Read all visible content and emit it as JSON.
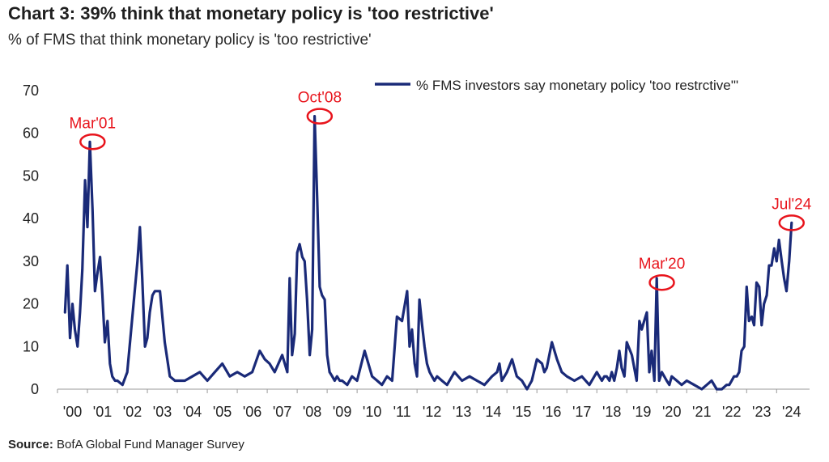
{
  "header": {
    "title": "Chart 3: 39% think that monetary policy is 'too restrictive'",
    "subtitle": "% of FMS that think monetary policy is 'too restrictive'"
  },
  "footer": {
    "source_label": "Source:",
    "source_text": "BofA Global Fund Manager Survey"
  },
  "colors": {
    "series": "#1a2a78",
    "annotation": "#e8141c"
  },
  "chart_data": {
    "type": "line",
    "title": "Chart 3: 39% think that monetary policy is 'too restrictive'",
    "subtitle": "% of FMS that think monetary policy is 'too restrictive'",
    "xlabel": "",
    "ylabel": "",
    "xlim": [
      2000,
      2025.1
    ],
    "ylim": [
      0,
      70
    ],
    "yticks": [
      0,
      10,
      20,
      30,
      40,
      50,
      60,
      70
    ],
    "xtick_labels": [
      "'00",
      "'01",
      "'02",
      "'03",
      "'04",
      "'05",
      "'06",
      "'07",
      "'08",
      "'09",
      "'10",
      "'11",
      "'12",
      "'13",
      "'14",
      "'15",
      "'16",
      "'17",
      "'18",
      "'19",
      "'20",
      "'21",
      "'22",
      "'23",
      "'24"
    ],
    "grid": false,
    "legend": {
      "position": "top-right",
      "entries": [
        "% FMS investors say monetary policy 'too restrctive'\""
      ]
    },
    "series": [
      {
        "name": "% FMS investors say monetary policy 'too restrctive'\"",
        "x": [
          2000.25,
          2000.33,
          2000.42,
          2000.5,
          2000.58,
          2000.67,
          2000.75,
          2000.83,
          2000.92,
          2001.0,
          2001.08,
          2001.17,
          2001.25,
          2001.33,
          2001.42,
          2001.5,
          2001.58,
          2001.67,
          2001.75,
          2001.83,
          2001.92,
          2002.0,
          2002.17,
          2002.33,
          2002.5,
          2002.67,
          2002.75,
          2002.83,
          2002.92,
          2003.0,
          2003.08,
          2003.17,
          2003.25,
          2003.42,
          2003.58,
          2003.75,
          2003.92,
          2004.08,
          2004.25,
          2004.5,
          2004.75,
          2005.0,
          2005.25,
          2005.5,
          2005.75,
          2006.0,
          2006.25,
          2006.5,
          2006.75,
          2006.92,
          2007.08,
          2007.25,
          2007.5,
          2007.67,
          2007.75,
          2007.83,
          2007.92,
          2008.0,
          2008.08,
          2008.17,
          2008.25,
          2008.33,
          2008.42,
          2008.5,
          2008.58,
          2008.67,
          2008.75,
          2008.83,
          2008.92,
          2009.0,
          2009.08,
          2009.17,
          2009.25,
          2009.33,
          2009.42,
          2009.5,
          2009.67,
          2009.83,
          2010.0,
          2010.25,
          2010.5,
          2010.67,
          2010.83,
          2011.0,
          2011.17,
          2011.33,
          2011.5,
          2011.67,
          2011.75,
          2011.83,
          2011.92,
          2012.0,
          2012.08,
          2012.17,
          2012.25,
          2012.33,
          2012.42,
          2012.5,
          2012.58,
          2012.67,
          2012.83,
          2013.0,
          2013.25,
          2013.5,
          2013.75,
          2014.0,
          2014.25,
          2014.5,
          2014.67,
          2014.75,
          2014.83,
          2015.0,
          2015.17,
          2015.33,
          2015.5,
          2015.67,
          2015.83,
          2016.0,
          2016.17,
          2016.25,
          2016.33,
          2016.5,
          2016.67,
          2016.83,
          2017.0,
          2017.25,
          2017.5,
          2017.75,
          2018.0,
          2018.17,
          2018.25,
          2018.33,
          2018.42,
          2018.5,
          2018.58,
          2018.67,
          2018.75,
          2018.83,
          2018.92,
          2019.0,
          2019.17,
          2019.33,
          2019.42,
          2019.5,
          2019.58,
          2019.67,
          2019.75,
          2019.83,
          2019.92,
          2020.0,
          2020.08,
          2020.17,
          2020.25,
          2020.33,
          2020.42,
          2020.5,
          2020.67,
          2020.83,
          2021.0,
          2021.25,
          2021.5,
          2021.67,
          2021.83,
          2022.0,
          2022.17,
          2022.33,
          2022.42,
          2022.5,
          2022.58,
          2022.67,
          2022.75,
          2022.83,
          2022.92,
          2023.0,
          2023.08,
          2023.17,
          2023.25,
          2023.33,
          2023.42,
          2023.5,
          2023.58,
          2023.67,
          2023.75,
          2023.83,
          2023.92,
          2024.0,
          2024.08,
          2024.17,
          2024.25,
          2024.33,
          2024.42,
          2024.5
        ],
        "values": [
          18,
          29,
          12,
          20,
          14,
          10,
          18,
          28,
          49,
          38,
          58,
          42,
          23,
          27,
          31,
          22,
          11,
          16,
          6,
          3,
          2,
          2,
          1,
          4,
          17,
          30,
          38,
          26,
          10,
          12,
          18,
          22,
          23,
          23,
          11,
          3,
          2,
          2,
          2,
          3,
          4,
          2,
          4,
          6,
          3,
          4,
          3,
          4,
          9,
          7,
          6,
          4,
          8,
          4,
          26,
          8,
          13,
          32,
          34,
          31,
          30,
          21,
          8,
          14,
          64,
          44,
          24,
          22,
          21,
          8,
          4,
          3,
          2,
          3,
          2,
          2,
          1,
          3,
          2,
          9,
          3,
          2,
          1,
          3,
          2,
          17,
          16,
          23,
          10,
          14,
          6,
          3,
          21,
          15,
          10,
          6,
          4,
          3,
          2,
          3,
          2,
          1,
          4,
          2,
          3,
          2,
          1,
          3,
          4,
          6,
          2,
          4,
          7,
          3,
          2,
          0,
          2,
          7,
          6,
          4,
          5,
          11,
          7,
          4,
          3,
          2,
          3,
          1,
          4,
          2,
          3,
          3,
          2,
          4,
          2,
          5,
          9,
          5,
          3,
          11,
          8,
          2,
          16,
          14,
          16,
          18,
          4,
          9,
          2,
          26,
          2,
          4,
          3,
          2,
          1,
          3,
          2,
          1,
          2,
          1,
          0,
          1,
          2,
          0,
          0,
          1,
          1,
          2,
          3,
          3,
          4,
          9,
          10,
          24,
          16,
          17,
          15,
          25,
          24,
          15,
          20,
          22,
          29,
          29,
          33,
          30,
          35,
          30,
          26,
          23,
          30,
          39
        ]
      }
    ],
    "annotations": [
      {
        "label": "Mar'01",
        "x": 2001.17,
        "y": 58
      },
      {
        "label": "Oct'08",
        "x": 2008.75,
        "y": 64
      },
      {
        "label": "Mar'20",
        "x": 2020.17,
        "y": 25
      },
      {
        "label": "Jul'24",
        "x": 2024.5,
        "y": 39
      }
    ]
  }
}
